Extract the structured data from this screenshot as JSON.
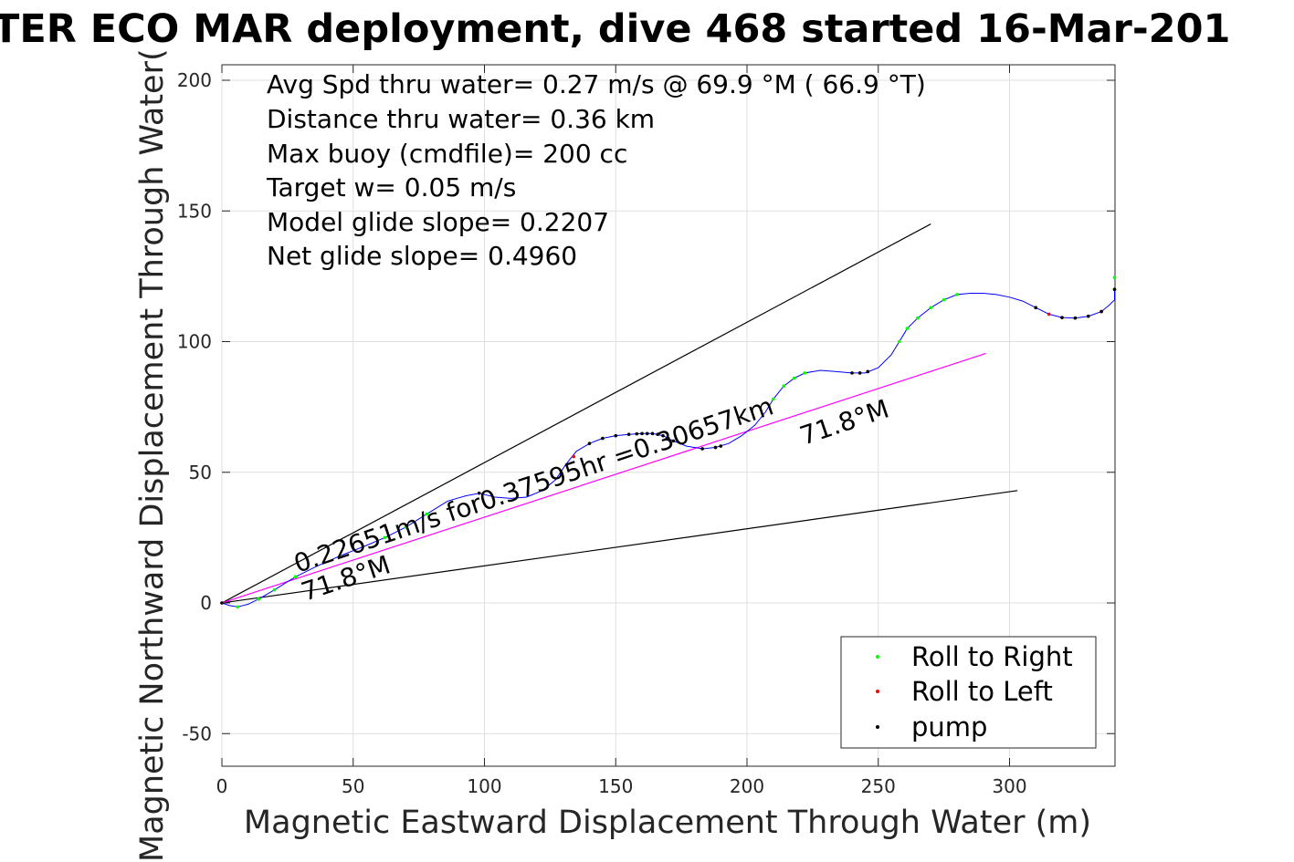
{
  "title": "TER ECO MAR deployment, dive 468 started 16-Mar-201",
  "info_lines": [
    "Avg Spd thru water=  0.27 m/s @  69.9 °M ( 66.9 °T)",
    "Distance thru water=  0.36 km",
    "Max buoy (cmdfile)= 200 cc",
    "Target w= 0.05 m/s",
    "Model glide slope= 0.2207",
    "Net glide slope= 0.4960"
  ],
  "chart_data": {
    "type": "line",
    "title": "TER ECO MAR deployment, dive 468 started 16-Mar-201",
    "xlabel": "Magnetic Eastward Displacement Through Water (m)",
    "ylabel": "Magnetic Northward Displacement Through Water(",
    "xlim": [
      0,
      340
    ],
    "ylim": [
      -62,
      206
    ],
    "xticks": [
      0,
      50,
      100,
      150,
      200,
      250,
      300
    ],
    "yticks": [
      -50,
      0,
      50,
      100,
      150,
      200
    ],
    "grid": true,
    "legend": {
      "placement": "bottom-right",
      "entries": [
        {
          "label": "Roll to Right",
          "color": "#00ff00"
        },
        {
          "label": "Roll to Left",
          "color": "#ff0000"
        },
        {
          "label": "pump",
          "color": "#000000"
        }
      ]
    },
    "track": {
      "color": "#0000ff",
      "points": [
        [
          0,
          0
        ],
        [
          3,
          -1
        ],
        [
          6,
          -1.5
        ],
        [
          10,
          -0.5
        ],
        [
          14,
          1.5
        ],
        [
          20,
          5
        ],
        [
          28,
          10
        ],
        [
          36,
          14
        ],
        [
          45,
          18
        ],
        [
          55,
          22
        ],
        [
          62,
          25
        ],
        [
          70,
          29
        ],
        [
          78,
          34
        ],
        [
          86,
          39
        ],
        [
          93,
          41
        ],
        [
          98,
          42
        ],
        [
          104,
          40.5
        ],
        [
          110,
          40
        ],
        [
          116,
          40.5
        ],
        [
          122,
          43
        ],
        [
          127,
          47
        ],
        [
          131,
          53
        ],
        [
          135,
          58
        ],
        [
          140,
          61
        ],
        [
          145,
          63
        ],
        [
          150,
          64
        ],
        [
          155,
          64.5
        ],
        [
          160,
          64.8
        ],
        [
          164,
          64.8
        ],
        [
          168,
          64
        ],
        [
          172,
          62
        ],
        [
          177,
          60
        ],
        [
          183,
          59
        ],
        [
          188,
          59.5
        ],
        [
          193,
          61
        ],
        [
          198,
          64
        ],
        [
          203,
          68
        ],
        [
          207,
          73
        ],
        [
          210,
          78
        ],
        [
          214,
          83
        ],
        [
          218,
          86
        ],
        [
          222,
          88
        ],
        [
          228,
          89
        ],
        [
          234,
          88.5
        ],
        [
          240,
          88
        ],
        [
          245,
          88
        ],
        [
          250,
          90
        ],
        [
          255,
          95
        ],
        [
          258,
          100
        ],
        [
          261,
          105
        ],
        [
          265,
          109
        ],
        [
          270,
          113
        ],
        [
          275,
          116
        ],
        [
          280,
          118
        ],
        [
          285,
          118.5
        ],
        [
          290,
          118.5
        ],
        [
          295,
          118
        ],
        [
          300,
          117
        ],
        [
          305,
          115.5
        ],
        [
          310,
          113
        ],
        [
          315,
          110.5
        ],
        [
          320,
          109.2
        ],
        [
          325,
          109
        ],
        [
          330,
          109.7
        ],
        [
          335,
          111.5
        ],
        [
          338,
          114
        ],
        [
          340,
          116
        ],
        [
          340,
          120
        ]
      ]
    },
    "markers": {
      "roll_right": [
        [
          6,
          -1.5
        ],
        [
          14,
          1.5
        ],
        [
          20,
          5
        ],
        [
          28,
          10
        ],
        [
          45,
          18
        ],
        [
          62,
          25
        ],
        [
          70,
          29
        ],
        [
          78,
          34
        ],
        [
          210,
          78
        ],
        [
          214,
          83
        ],
        [
          218,
          86
        ],
        [
          222,
          88
        ],
        [
          258,
          100
        ],
        [
          261,
          105
        ],
        [
          265,
          109
        ],
        [
          270,
          113
        ],
        [
          275,
          116
        ],
        [
          280,
          118
        ],
        [
          340,
          124.5
        ],
        [
          340,
          120
        ]
      ],
      "roll_left": [
        [
          0,
          0
        ],
        [
          134,
          56
        ],
        [
          243,
          88
        ],
        [
          246,
          88.5
        ],
        [
          310,
          113
        ],
        [
          315,
          110.5
        ],
        [
          320,
          109.2
        ],
        [
          335,
          111.5
        ],
        [
          188,
          59.5
        ]
      ],
      "pump": [
        [
          0,
          0
        ],
        [
          98,
          42
        ],
        [
          140,
          61
        ],
        [
          145,
          63
        ],
        [
          150,
          64
        ],
        [
          155,
          64.5
        ],
        [
          158,
          64.7
        ],
        [
          160,
          64.8
        ],
        [
          162,
          64.8
        ],
        [
          164,
          64.8
        ],
        [
          166,
          64.5
        ],
        [
          168,
          64
        ],
        [
          170,
          63
        ],
        [
          172,
          62
        ],
        [
          183,
          59
        ],
        [
          188,
          59.5
        ],
        [
          190,
          60
        ],
        [
          240,
          88
        ],
        [
          243,
          88
        ],
        [
          246,
          88.5
        ],
        [
          310,
          113
        ],
        [
          320,
          109.2
        ],
        [
          325,
          109
        ],
        [
          330,
          109.7
        ],
        [
          335,
          111.5
        ],
        [
          340,
          120
        ]
      ]
    },
    "guide_lines": [
      {
        "name": "upper-bound-line",
        "color": "#000000",
        "from": [
          0,
          0
        ],
        "to": [
          270,
          145
        ]
      },
      {
        "name": "lower-bound-line",
        "color": "#000000",
        "from": [
          0,
          0
        ],
        "to": [
          303,
          43
        ]
      },
      {
        "name": "mean-heading-line",
        "color": "#ff00ff",
        "from": [
          0,
          0
        ],
        "to": [
          291,
          95.5
        ]
      }
    ],
    "annotations": {
      "speed": "0.22651m/s for0.37595hr =0.30657km",
      "heading_near": "71.8°M",
      "heading_far": "71.8°M"
    }
  }
}
